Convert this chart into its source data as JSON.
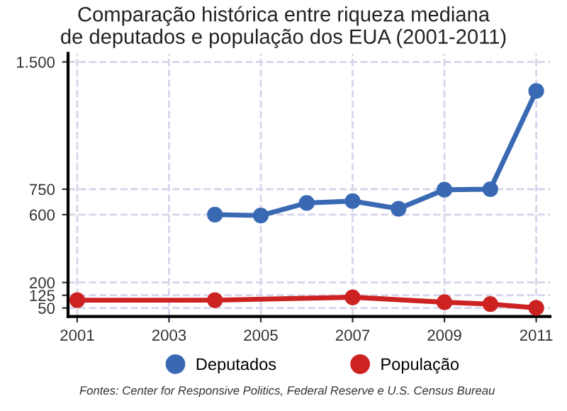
{
  "chart_data": {
    "type": "line",
    "title": "Comparação histórica entre riqueza mediana\nde deputados e população dos EUA (2001-2011)",
    "x": [
      2001,
      2004,
      2005,
      2006,
      2007,
      2008,
      2009,
      2010,
      2011
    ],
    "series": [
      {
        "name": "Deputados",
        "color": "#3a69b4",
        "values": [
          null,
          600,
          595,
          669,
          680,
          635,
          747,
          750,
          1329
        ]
      },
      {
        "name": "População",
        "color": "#cc2222",
        "values": [
          96,
          96,
          null,
          null,
          113,
          null,
          84,
          73,
          51
        ]
      }
    ],
    "xlim": [
      2000.8,
      2011.3
    ],
    "xticks": [
      {
        "value": 2001,
        "label": "2001"
      },
      {
        "value": 2003,
        "label": "2003"
      },
      {
        "value": 2005,
        "label": "2005"
      },
      {
        "value": 2007,
        "label": "2007"
      },
      {
        "value": 2009,
        "label": "2009"
      },
      {
        "value": 2011,
        "label": "2011"
      }
    ],
    "ylim": [
      0,
      1550
    ],
    "yticks": [
      50,
      125,
      200,
      600,
      750,
      {
        "value": 1500,
        "label": "1.500"
      }
    ],
    "grid": true,
    "legend": "bottom",
    "marker": "circle",
    "line_style": "solid",
    "annotations": [
      "Fontes: Center for Responsive Politics, Federal Reserve e U.S. Census Bureau"
    ]
  }
}
